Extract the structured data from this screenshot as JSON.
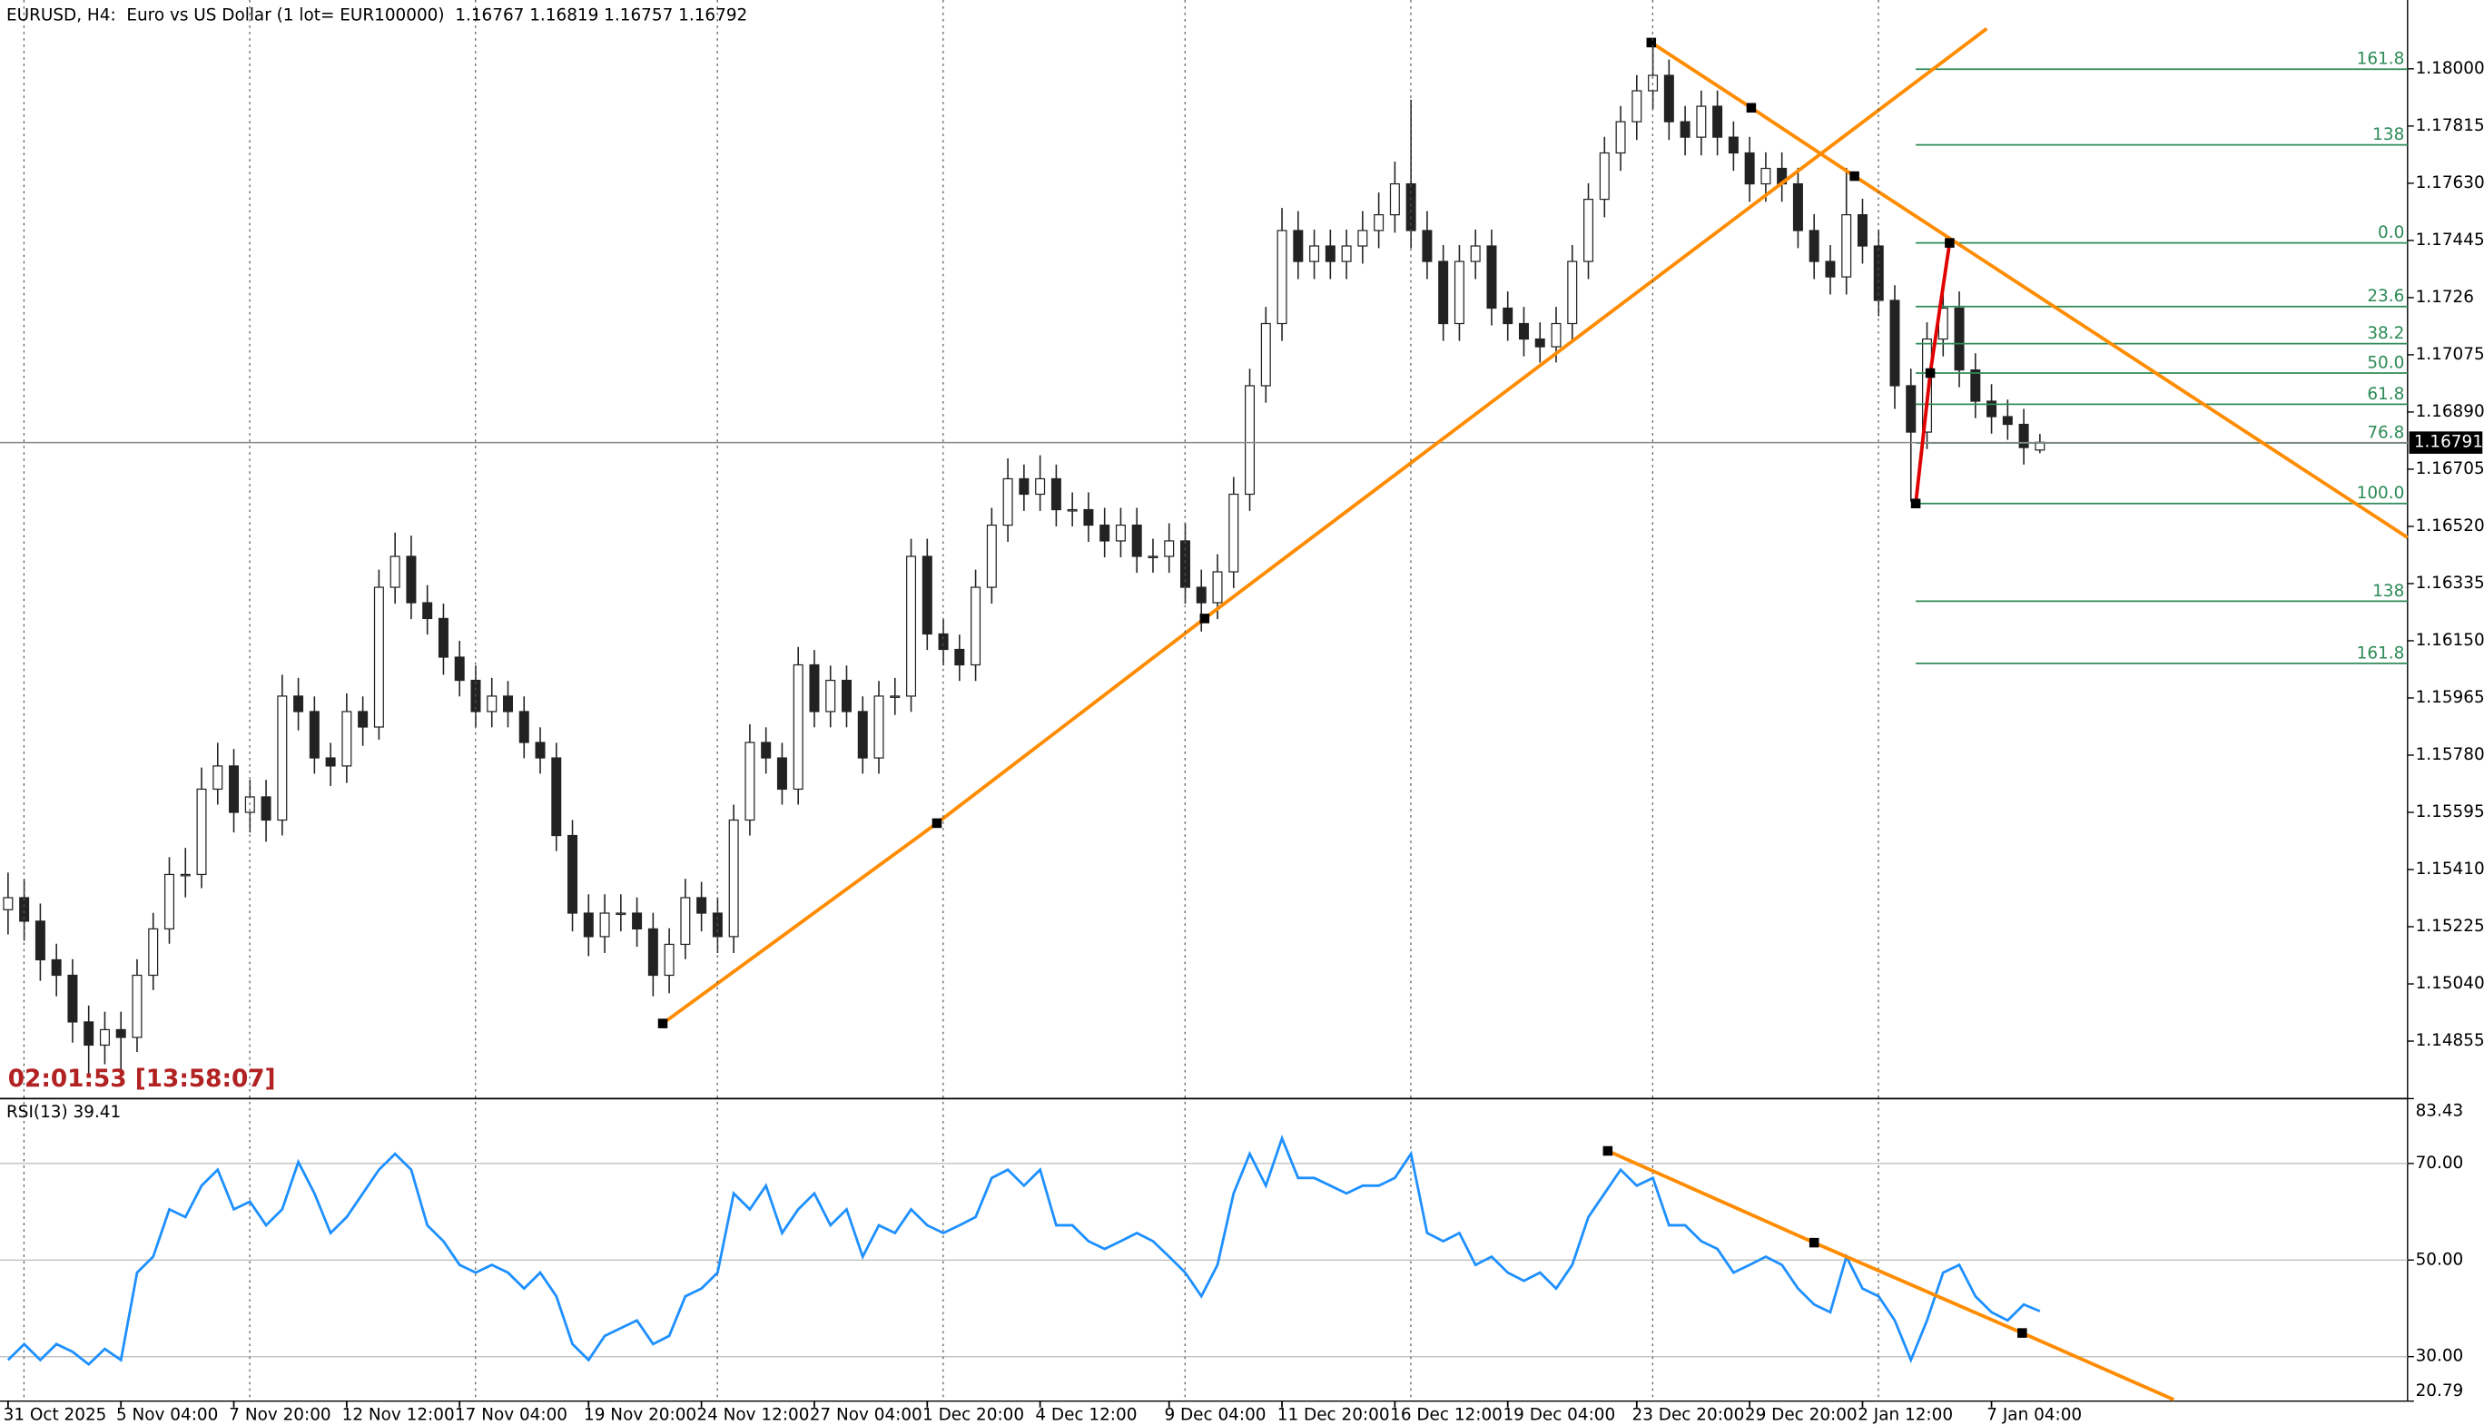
{
  "chart_data": [
    {
      "type": "candlestick",
      "title": "EURUSD, H4:  Euro vs US Dollar (1 lot= EUR100000)  1.16767 1.16819 1.16757 1.16792",
      "timer": "02:01:53 [13:58:07]",
      "xlim": [
        -0.5,
        148.8
      ],
      "ylim": [
        1.14669,
        1.1813
      ],
      "yticks": [
        {
          "value": 1.18,
          "label": "1.18000"
        },
        1.17815,
        {
          "value": 1.1763,
          "label": "1.17630"
        },
        1.17445,
        1.1726,
        1.17075,
        {
          "value": 1.1689,
          "label": "1.16890"
        },
        1.16705,
        {
          "value": 1.1652,
          "label": "1.16520"
        },
        1.16335,
        {
          "value": 1.1615,
          "label": "1.16150"
        },
        1.15965,
        {
          "value": 1.1578,
          "label": "1.15780"
        },
        1.15595,
        {
          "value": 1.1541,
          "label": "1.15410"
        },
        1.15225,
        {
          "value": 1.1504,
          "label": "1.15040"
        },
        1.14855
      ],
      "current_price": 1.16791,
      "open": [
        1.1528,
        1.15319,
        1.15243,
        1.15118,
        1.15068,
        1.14917,
        1.14842,
        1.14892,
        1.14867,
        1.15068,
        1.15218,
        1.15394,
        1.15394,
        1.1567,
        1.15745,
        1.15595,
        1.15645,
        1.1557,
        1.15971,
        1.15921,
        1.15771,
        1.15745,
        1.15921,
        1.15871,
        1.16323,
        1.16423,
        1.16273,
        1.16222,
        1.16097,
        1.16022,
        1.15921,
        1.15971,
        1.15921,
        1.15821,
        1.15771,
        1.1552,
        1.15269,
        1.15193,
        1.15269,
        1.15269,
        1.15218,
        1.15068,
        1.15168,
        1.15319,
        1.15269,
        1.15193,
        1.1557,
        1.15821,
        1.15771,
        1.1567,
        1.16072,
        1.15921,
        1.16022,
        1.15921,
        1.15771,
        1.15971,
        1.15971,
        1.16423,
        1.16172,
        1.16122,
        1.16072,
        1.16323,
        1.16524,
        1.16674,
        1.16624,
        1.16674,
        1.16574,
        1.16574,
        1.16524,
        1.16473,
        1.16524,
        1.16423,
        1.16423,
        1.16473,
        1.16323,
        1.16273,
        1.16373,
        1.16624,
        1.16975,
        1.17176,
        1.17477,
        1.17377,
        1.17427,
        1.17377,
        1.17427,
        1.17477,
        1.17528,
        1.17628,
        1.17477,
        1.17377,
        1.17176,
        1.17377,
        1.17427,
        1.17226,
        1.17176,
        1.17126,
        1.17101,
        1.17176,
        1.17377,
        1.17578,
        1.17728,
        1.17829,
        1.17929,
        1.17979,
        1.17829,
        1.17779,
        1.17879,
        1.17779,
        1.17728,
        1.17628,
        1.17678,
        1.17628,
        1.17477,
        1.17377,
        1.17327,
        1.17528,
        1.17427,
        1.17251,
        1.16975,
        1.16825,
        1.17126,
        1.17226,
        1.17026,
        1.16925,
        1.16875,
        1.1685,
        1.16767
      ],
      "high": [
        1.154,
        1.1538,
        1.153,
        1.1517,
        1.1512,
        1.1497,
        1.1495,
        1.1495,
        1.1512,
        1.1527,
        1.1545,
        1.1548,
        1.1574,
        1.1582,
        1.158,
        1.157,
        1.157,
        1.1604,
        1.1603,
        1.1597,
        1.1582,
        1.1598,
        1.1597,
        1.1638,
        1.165,
        1.1649,
        1.1633,
        1.1627,
        1.1615,
        1.1607,
        1.1603,
        1.1602,
        1.1597,
        1.1587,
        1.1582,
        1.1557,
        1.1533,
        1.1533,
        1.1533,
        1.1532,
        1.1527,
        1.1522,
        1.1538,
        1.1537,
        1.1532,
        1.1562,
        1.1588,
        1.1587,
        1.1582,
        1.1613,
        1.1612,
        1.1607,
        1.1607,
        1.1597,
        1.1602,
        1.1603,
        1.1648,
        1.1648,
        1.1622,
        1.1617,
        1.1638,
        1.1658,
        1.1674,
        1.1672,
        1.1675,
        1.1672,
        1.1663,
        1.1663,
        1.1658,
        1.1658,
        1.1658,
        1.1648,
        1.1653,
        1.1653,
        1.1638,
        1.1643,
        1.1668,
        1.1703,
        1.1723,
        1.1755,
        1.1754,
        1.1748,
        1.1748,
        1.1748,
        1.1754,
        1.176,
        1.177,
        1.179,
        1.1754,
        1.1743,
        1.1743,
        1.1748,
        1.1748,
        1.1728,
        1.1723,
        1.1718,
        1.1723,
        1.1743,
        1.1763,
        1.1778,
        1.1788,
        1.1798,
        1.181,
        1.1803,
        1.1788,
        1.1793,
        1.1793,
        1.1783,
        1.1778,
        1.1773,
        1.1773,
        1.1768,
        1.1753,
        1.1743,
        1.1768,
        1.1758,
        1.1748,
        1.173,
        1.1703,
        1.1718,
        1.173,
        1.1728,
        1.1708,
        1.1698,
        1.1693,
        1.169,
        1.16819
      ],
      "low": [
        1.152,
        1.1518,
        1.1505,
        1.15,
        1.1485,
        1.1475,
        1.1478,
        1.1475,
        1.1482,
        1.1502,
        1.1517,
        1.1532,
        1.1535,
        1.1562,
        1.1553,
        1.1553,
        1.155,
        1.1552,
        1.1586,
        1.1572,
        1.1568,
        1.1569,
        1.1581,
        1.1583,
        1.1627,
        1.1622,
        1.1617,
        1.1604,
        1.1597,
        1.1587,
        1.1587,
        1.1587,
        1.1577,
        1.1572,
        1.1547,
        1.1521,
        1.1513,
        1.1514,
        1.1521,
        1.1516,
        1.15,
        1.1501,
        1.1512,
        1.1521,
        1.1514,
        1.1514,
        1.1552,
        1.1572,
        1.1562,
        1.1562,
        1.1587,
        1.1587,
        1.1587,
        1.1572,
        1.1572,
        1.1591,
        1.1592,
        1.1612,
        1.1607,
        1.1602,
        1.1602,
        1.1627,
        1.1647,
        1.1657,
        1.1657,
        1.1652,
        1.1652,
        1.1647,
        1.1642,
        1.1642,
        1.1637,
        1.1637,
        1.1637,
        1.1627,
        1.1618,
        1.1622,
        1.1632,
        1.1657,
        1.1692,
        1.1712,
        1.1732,
        1.1732,
        1.1732,
        1.1732,
        1.1737,
        1.1742,
        1.1747,
        1.1742,
        1.1732,
        1.1712,
        1.1712,
        1.1732,
        1.1717,
        1.1712,
        1.1707,
        1.1705,
        1.1705,
        1.1712,
        1.1732,
        1.1752,
        1.1767,
        1.1777,
        1.1787,
        1.1777,
        1.1772,
        1.1772,
        1.1772,
        1.1767,
        1.1757,
        1.1757,
        1.1757,
        1.1742,
        1.1732,
        1.1727,
        1.1727,
        1.1737,
        1.172,
        1.169,
        1.166,
        1.1677,
        1.1707,
        1.1697,
        1.1687,
        1.1682,
        1.168,
        1.1672,
        1.16757
      ],
      "close": [
        1.15319,
        1.15243,
        1.15118,
        1.15068,
        1.14917,
        1.14842,
        1.14892,
        1.14867,
        1.15068,
        1.15218,
        1.15394,
        1.15394,
        1.1567,
        1.15745,
        1.15595,
        1.15645,
        1.1557,
        1.15971,
        1.15921,
        1.15771,
        1.15745,
        1.15921,
        1.15871,
        1.16323,
        1.16423,
        1.16273,
        1.16222,
        1.16097,
        1.16022,
        1.15921,
        1.15971,
        1.15921,
        1.15821,
        1.15771,
        1.1552,
        1.15269,
        1.15193,
        1.15269,
        1.15269,
        1.15218,
        1.15068,
        1.15168,
        1.15319,
        1.15269,
        1.15193,
        1.1557,
        1.15821,
        1.15771,
        1.1567,
        1.16072,
        1.15921,
        1.16022,
        1.15921,
        1.15771,
        1.15971,
        1.15971,
        1.16423,
        1.16172,
        1.16122,
        1.16072,
        1.16323,
        1.16524,
        1.16674,
        1.16624,
        1.16674,
        1.16574,
        1.16574,
        1.16524,
        1.16473,
        1.16524,
        1.16423,
        1.16423,
        1.16473,
        1.16323,
        1.16273,
        1.16373,
        1.16624,
        1.16975,
        1.17176,
        1.17477,
        1.17377,
        1.17427,
        1.17377,
        1.17427,
        1.17477,
        1.17528,
        1.17628,
        1.17477,
        1.17377,
        1.17176,
        1.17377,
        1.17427,
        1.17226,
        1.17176,
        1.17126,
        1.17101,
        1.17176,
        1.17377,
        1.17578,
        1.17728,
        1.17829,
        1.17929,
        1.17979,
        1.17829,
        1.17779,
        1.17879,
        1.17779,
        1.17728,
        1.17628,
        1.17678,
        1.17628,
        1.17477,
        1.17377,
        1.17327,
        1.17528,
        1.17427,
        1.17251,
        1.16975,
        1.16825,
        1.17126,
        1.17226,
        1.17026,
        1.16925,
        1.16875,
        1.1685,
        1.16775,
        1.16792
      ],
      "fibonacci": {
        "color": "#2e8b57",
        "x_start": 118.3,
        "x_end": 148.8,
        "levels": [
          {
            "label": "161.8",
            "value": 1.17999
          },
          {
            "label": "138",
            "value": 1.17754
          },
          {
            "label": "0.0",
            "value": 1.17437
          },
          {
            "label": "23.6",
            "value": 1.17231
          },
          {
            "label": "38.2",
            "value": 1.17111
          },
          {
            "label": "50.0",
            "value": 1.17016
          },
          {
            "label": "61.8",
            "value": 1.16915
          },
          {
            "label": "76.8",
            "value": 1.1679
          },
          {
            "label": "100.0",
            "value": 1.16594
          },
          {
            "label": "138",
            "value": 1.16278
          },
          {
            "label": "161.8",
            "value": 1.16077
          }
        ]
      },
      "trendlines": [
        {
          "color": "#ff8c00",
          "points": [
            {
              "x": 40.6,
              "y": 1.14912
            },
            {
              "x": 57.6,
              "y": 1.1556
            },
            {
              "x": 74.2,
              "y": 1.16222
            }
          ],
          "end": {
            "x": 122.7,
            "y": 1.1813
          }
        },
        {
          "color": "#ff8c00",
          "points": [
            {
              "x": 101.9,
              "y": 1.18085
            },
            {
              "x": 108.1,
              "y": 1.17874
            },
            {
              "x": 114.5,
              "y": 1.17653
            }
          ],
          "end": {
            "x": 148.8,
            "y": 1.16484
          }
        },
        {
          "color": "#e00000",
          "points": [
            {
              "x": 118.3,
              "y": 1.16594
            },
            {
              "x": 119.2,
              "y": 1.17016
            },
            {
              "x": 120.4,
              "y": 1.17437
            }
          ]
        }
      ]
    },
    {
      "type": "line",
      "title": "RSI(13) 39.41",
      "color": "#1e90ff",
      "xlim": [
        -0.5,
        148.8
      ],
      "xticks": [
        {
          "value": 0,
          "label": "31 Oct 2025"
        },
        {
          "value": 7,
          "label": "5 Nov 04:00"
        },
        {
          "value": 14,
          "label": "7 Nov 20:00"
        },
        {
          "value": 21,
          "label": "12 Nov 12:00"
        },
        {
          "value": 28,
          "label": "17 Nov 04:00"
        },
        {
          "value": 36,
          "label": "19 Nov 20:00"
        },
        {
          "value": 43,
          "label": "24 Nov 12:00"
        },
        {
          "value": 50,
          "label": "27 Nov 04:00"
        },
        {
          "value": 57,
          "label": "1 Dec 20:00"
        },
        {
          "value": 64,
          "label": "4 Dec 12:00"
        },
        {
          "value": 72,
          "label": "9 Dec 04:00"
        },
        {
          "value": 79,
          "label": "11 Dec 20:00"
        },
        {
          "value": 86,
          "label": "16 Dec 12:00"
        },
        {
          "value": 93,
          "label": "19 Dec 04:00"
        },
        {
          "value": 101,
          "label": "23 Dec 20:00"
        },
        {
          "value": 108,
          "label": "29 Dec 20:00"
        },
        {
          "value": 115,
          "label": "2 Jan 12:00"
        },
        {
          "value": 123,
          "label": "7 Jan 04:00"
        }
      ],
      "ylim": [
        20.79,
        83.43
      ],
      "yticks": [
        83.43,
        {
          "value": 70,
          "label": "70.00"
        },
        {
          "value": 50,
          "label": "50.00"
        },
        {
          "value": 30,
          "label": "30.00"
        },
        20.79
      ],
      "grid_levels": [
        70,
        50,
        30
      ],
      "values": [
        29.3,
        32.6,
        29.3,
        32.6,
        31,
        28.4,
        31.6,
        29.3,
        47.4,
        50.7,
        60.5,
        58.9,
        65.4,
        68.7,
        60.5,
        62.1,
        57.2,
        60.5,
        70.3,
        63.8,
        55.6,
        58.9,
        63.8,
        68.7,
        72,
        68.7,
        57.2,
        53.9,
        49,
        47.4,
        49,
        47.4,
        44.1,
        47.4,
        42.5,
        32.6,
        29.3,
        34.3,
        35.9,
        37.5,
        32.6,
        34.3,
        42.5,
        44.1,
        47.4,
        63.8,
        60.5,
        65.4,
        55.6,
        60.5,
        63.8,
        57.2,
        60.5,
        50.7,
        57.2,
        55.6,
        60.5,
        57.2,
        55.6,
        57.2,
        58.9,
        67,
        68.7,
        65.4,
        68.7,
        57.2,
        57.2,
        53.9,
        52.3,
        53.9,
        55.6,
        53.9,
        50.7,
        47.4,
        42.5,
        49,
        63.8,
        72,
        65.4,
        75.2,
        67,
        67,
        65.4,
        63.8,
        65.4,
        65.4,
        67,
        72,
        55.6,
        53.9,
        55.6,
        49,
        50.7,
        47.4,
        45.7,
        47.4,
        44.1,
        49,
        58.9,
        63.8,
        68.7,
        65.4,
        67,
        57.2,
        57.2,
        53.9,
        52.3,
        47.4,
        49,
        50.7,
        49,
        44.1,
        40.8,
        39.2,
        50.7,
        44.1,
        42.5,
        37.5,
        29.3,
        37.5,
        47.4,
        49,
        42.5,
        39.2,
        37.5,
        40.8,
        39.41
      ],
      "trendlines": [
        {
          "color": "#ff8c00",
          "points": [
            {
              "x": 99.2,
              "y": 72.6
            },
            {
              "x": 112,
              "y": 53.6
            },
            {
              "x": 124.9,
              "y": 34.9
            }
          ],
          "end": {
            "x": 134.3,
            "y": 21.1
          }
        }
      ]
    }
  ]
}
